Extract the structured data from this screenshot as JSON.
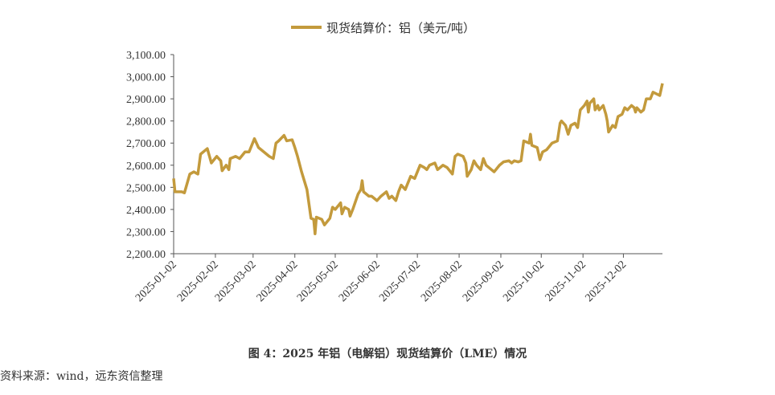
{
  "chart_data": {
    "type": "line",
    "legend_label": "现货结算价：铝（美元/吨）",
    "caption": "图 4：2025 年铝（电解铝）现货结算价（LME）情况",
    "source": "资料来源：wind，远东资信整理",
    "color": "#c39a3c",
    "x": [
      "2025-01-02",
      "2025-01-03",
      "2025-01-08",
      "2025-01-10",
      "2025-01-14",
      "2025-01-17",
      "2025-01-20",
      "2025-01-22",
      "2025-01-27",
      "2025-01-30",
      "2025-02-03",
      "2025-02-06",
      "2025-02-07",
      "2025-02-10",
      "2025-02-12",
      "2025-02-13",
      "2025-02-17",
      "2025-02-20",
      "2025-02-24",
      "2025-02-27",
      "2025-03-03",
      "2025-03-06",
      "2025-03-10",
      "2025-03-14",
      "2025-03-17",
      "2025-03-19",
      "2025-03-21",
      "2025-03-25",
      "2025-03-27",
      "2025-03-31",
      "2025-04-02",
      "2025-04-04",
      "2025-04-07",
      "2025-04-09",
      "2025-04-11",
      "2025-04-14",
      "2025-04-16",
      "2025-04-17",
      "2025-04-18",
      "2025-04-22",
      "2025-04-24",
      "2025-04-28",
      "2025-04-30",
      "2025-05-02",
      "2025-05-06",
      "2025-05-07",
      "2025-05-09",
      "2025-05-12",
      "2025-05-13",
      "2025-05-15",
      "2025-05-19",
      "2025-05-21",
      "2025-05-22",
      "2025-05-23",
      "2025-05-27",
      "2025-05-29",
      "2025-06-02",
      "2025-06-05",
      "2025-06-09",
      "2025-06-11",
      "2025-06-13",
      "2025-06-16",
      "2025-06-18",
      "2025-06-20",
      "2025-06-23",
      "2025-06-25",
      "2025-06-27",
      "2025-06-30",
      "2025-07-02",
      "2025-07-04",
      "2025-07-07",
      "2025-07-09",
      "2025-07-11",
      "2025-07-15",
      "2025-07-17",
      "2025-07-21",
      "2025-07-24",
      "2025-07-28",
      "2025-07-30",
      "2025-08-01",
      "2025-08-05",
      "2025-08-07",
      "2025-08-08",
      "2025-08-11",
      "2025-08-13",
      "2025-08-15",
      "2025-08-18",
      "2025-08-20",
      "2025-08-22",
      "2025-08-26",
      "2025-08-28",
      "2025-09-01",
      "2025-09-04",
      "2025-09-08",
      "2025-09-10",
      "2025-09-12",
      "2025-09-15",
      "2025-09-17",
      "2025-09-19",
      "2025-09-23",
      "2025-09-24",
      "2025-09-25",
      "2025-09-29",
      "2025-10-01",
      "2025-10-03",
      "2025-10-06",
      "2025-10-10",
      "2025-10-14",
      "2025-10-16",
      "2025-10-17",
      "2025-10-20",
      "2025-10-22",
      "2025-10-24",
      "2025-10-27",
      "2025-10-29",
      "2025-10-31",
      "2025-11-03",
      "2025-11-05",
      "2025-11-06",
      "2025-11-07",
      "2025-11-10",
      "2025-11-11",
      "2025-11-13",
      "2025-11-14",
      "2025-11-17",
      "2025-11-19",
      "2025-11-20",
      "2025-11-21",
      "2025-11-24",
      "2025-11-26",
      "2025-11-28",
      "2025-12-01",
      "2025-12-03",
      "2025-12-05",
      "2025-12-08",
      "2025-12-10",
      "2025-12-11",
      "2025-12-12",
      "2025-12-15",
      "2025-12-17",
      "2025-12-19",
      "2025-12-22",
      "2025-12-24",
      "2025-12-29",
      "2025-12-31"
    ],
    "values": [
      2540,
      2480,
      2480,
      2475,
      2560,
      2570,
      2560,
      2650,
      2675,
      2610,
      2640,
      2620,
      2575,
      2600,
      2580,
      2630,
      2640,
      2630,
      2660,
      2660,
      2720,
      2680,
      2660,
      2640,
      2630,
      2700,
      2710,
      2735,
      2710,
      2715,
      2680,
      2640,
      2570,
      2530,
      2490,
      2360,
      2355,
      2290,
      2365,
      2355,
      2330,
      2360,
      2410,
      2400,
      2430,
      2380,
      2410,
      2400,
      2370,
      2400,
      2470,
      2490,
      2530,
      2480,
      2460,
      2460,
      2440,
      2460,
      2480,
      2450,
      2460,
      2440,
      2480,
      2510,
      2490,
      2520,
      2550,
      2540,
      2570,
      2600,
      2590,
      2580,
      2600,
      2610,
      2580,
      2600,
      2590,
      2560,
      2640,
      2650,
      2640,
      2610,
      2550,
      2580,
      2620,
      2600,
      2580,
      2630,
      2600,
      2580,
      2570,
      2600,
      2615,
      2620,
      2610,
      2620,
      2615,
      2620,
      2710,
      2700,
      2740,
      2690,
      2680,
      2625,
      2660,
      2670,
      2700,
      2710,
      2790,
      2800,
      2780,
      2740,
      2780,
      2790,
      2770,
      2850,
      2870,
      2890,
      2840,
      2880,
      2900,
      2850,
      2870,
      2850,
      2870,
      2830,
      2800,
      2750,
      2780,
      2770,
      2820,
      2830,
      2860,
      2850,
      2870,
      2860,
      2840,
      2860,
      2840,
      2850,
      2900,
      2900,
      2930,
      2915,
      2970
    ],
    "xlim": [
      "2025-01-02",
      "2025-12-31"
    ],
    "xticks": [
      "2025-01-02",
      "2025-02-02",
      "2025-03-02",
      "2025-04-02",
      "2025-05-02",
      "2025-06-02",
      "2025-07-02",
      "2025-08-02",
      "2025-09-02",
      "2025-10-02",
      "2025-11-02",
      "2025-12-02"
    ],
    "ylim": [
      2200,
      3100
    ],
    "yticks": [
      {
        "value": 2200,
        "label": "2,200.00"
      },
      {
        "value": 2300,
        "label": "2,300.00"
      },
      {
        "value": 2400,
        "label": "2,400.00"
      },
      {
        "value": 2500,
        "label": "2,500.00"
      },
      {
        "value": 2600,
        "label": "2,600.00"
      },
      {
        "value": 2700,
        "label": "2,700.00"
      },
      {
        "value": 2800,
        "label": "2,800.00"
      },
      {
        "value": 2900,
        "label": "2,900.00"
      },
      {
        "value": 3000,
        "label": "3,000.00"
      },
      {
        "value": 3100,
        "label": "3,100.00"
      }
    ],
    "legend": "top"
  }
}
